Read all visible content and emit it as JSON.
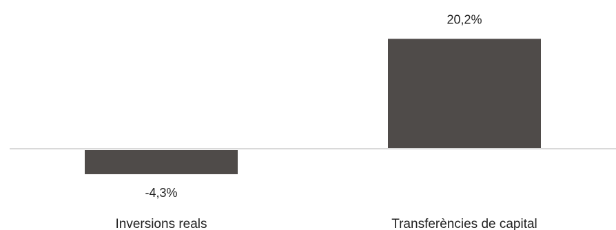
{
  "chart_data": {
    "type": "bar",
    "categories": [
      "Inversions reals",
      "Transferències de capital"
    ],
    "values": [
      -4.3,
      20.2
    ],
    "data_labels": [
      "-4,3%",
      "20,2%"
    ],
    "unit": "%",
    "ylim": [
      -4.3,
      20.2
    ],
    "grid": false,
    "legend": "none",
    "title": "",
    "xlabel": "",
    "ylabel": "",
    "colors": {
      "bar": "#4f4b49",
      "zero_line": "#d9d9d9",
      "text": "#222222"
    }
  }
}
